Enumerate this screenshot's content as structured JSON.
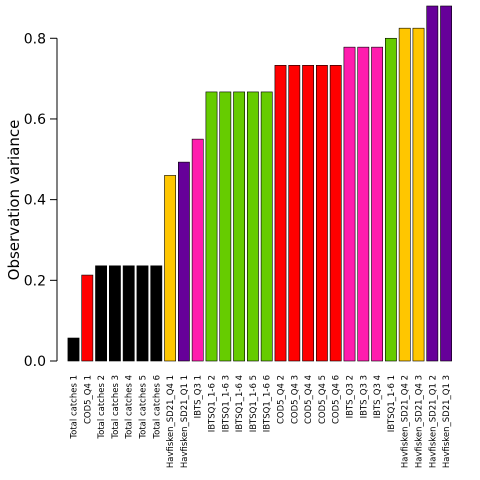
{
  "chart_data": {
    "type": "bar",
    "title": "",
    "xlabel": "",
    "ylabel": "Observation variance",
    "ylim": [
      0,
      0.88
    ],
    "yticks": [
      0.0,
      0.2,
      0.4,
      0.6,
      0.8
    ],
    "ytick_labels": [
      "0.0",
      "0.2",
      "0.4",
      "0.6",
      "0.8"
    ],
    "grid": false,
    "legend": "none",
    "categories": [
      "Total catches 1",
      "COD5_Q4 1",
      "Total catches 2",
      "Total catches 3",
      "Total catches 4",
      "Total catches 5",
      "Total catches 6",
      "Havfisken_SD21_Q4 1",
      "Havfisken_SD21_Q1 1",
      "IBTS_Q3 1",
      "IBTSQ1_1-6 2",
      "IBTSQ1_1-6 3",
      "IBTSQ1_1-6 4",
      "IBTSQ1_1-6 5",
      "IBTSQ1_1-6 6",
      "COD5_Q4 2",
      "COD5_Q4 3",
      "COD5_Q4 4",
      "COD5_Q4 5",
      "COD5_Q4 6",
      "IBTS_Q3 2",
      "IBTS_Q3 3",
      "IBTS_Q3 4",
      "IBTSQ1_1-6 1",
      "Havfisken_SD21_Q4 2",
      "Havfisken_SD21_Q4 3",
      "Havfisken_SD21_Q1 2",
      "Havfisken_SD21_Q1 3"
    ],
    "values": [
      0.057,
      0.213,
      0.236,
      0.236,
      0.236,
      0.236,
      0.236,
      0.46,
      0.493,
      0.55,
      0.667,
      0.667,
      0.667,
      0.667,
      0.667,
      0.733,
      0.733,
      0.733,
      0.733,
      0.733,
      0.778,
      0.778,
      0.778,
      0.8,
      0.825,
      0.825,
      0.88,
      0.88
    ],
    "bar_colors": [
      "#000000",
      "#ff0000",
      "#000000",
      "#000000",
      "#000000",
      "#000000",
      "#000000",
      "#ffc600",
      "#660099",
      "#ff1cae",
      "#66cc00",
      "#66cc00",
      "#66cc00",
      "#66cc00",
      "#66cc00",
      "#ff0000",
      "#ff0000",
      "#ff0000",
      "#ff0000",
      "#ff0000",
      "#ff1cae",
      "#ff1cae",
      "#ff1cae",
      "#66cc00",
      "#ffc600",
      "#ffc600",
      "#660099",
      "#660099"
    ]
  }
}
